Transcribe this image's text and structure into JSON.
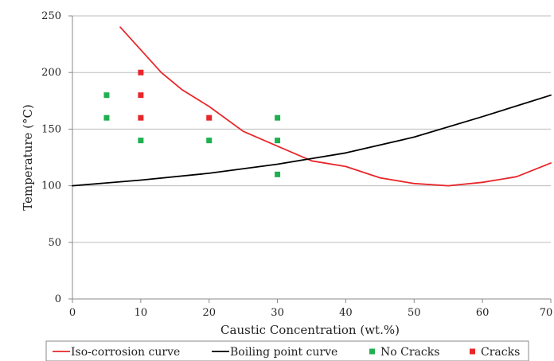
{
  "chart_data": {
    "type": "scatter",
    "xlabel": "Caustic Concentration (wt.%)",
    "ylabel": "Temperature (°C)",
    "xlim": [
      0,
      70
    ],
    "ylim": [
      0,
      250
    ],
    "xticks": [
      0,
      10,
      20,
      30,
      40,
      50,
      60,
      70
    ],
    "xtick_labels": [
      "0",
      "10",
      "20",
      "30",
      "40",
      "50",
      "60",
      "70"
    ],
    "yticks": [
      0,
      50,
      100,
      150,
      200,
      250
    ],
    "ytick_labels": [
      "0",
      "50",
      "100",
      "150",
      "200",
      "250"
    ],
    "grid": "horizontal",
    "legend_position": "bottom",
    "series": [
      {
        "name": "Iso-corrosion curve",
        "kind": "line",
        "color": "#e8262a",
        "x": [
          7,
          10,
          13,
          16,
          20,
          25,
          30,
          35,
          40,
          45,
          50,
          55,
          60,
          65,
          70
        ],
        "y": [
          240,
          220,
          200,
          185,
          170,
          148,
          135,
          122,
          117,
          107,
          102,
          100,
          103,
          108,
          120
        ]
      },
      {
        "name": "Boiling point curve",
        "kind": "line",
        "color": "#000000",
        "x": [
          0,
          10,
          20,
          30,
          40,
          50,
          60,
          70
        ],
        "y": [
          100,
          105,
          111,
          119,
          129,
          143,
          161,
          180
        ]
      },
      {
        "name": "No Cracks",
        "kind": "scatter",
        "color": "#1fb050",
        "x": [
          5,
          5,
          10,
          20,
          30,
          30,
          30
        ],
        "y": [
          180,
          160,
          140,
          140,
          160,
          140,
          110
        ]
      },
      {
        "name": "Cracks",
        "kind": "scatter",
        "color": "#e8262a",
        "x": [
          10,
          10,
          10,
          20
        ],
        "y": [
          200,
          180,
          160,
          160
        ]
      }
    ]
  }
}
